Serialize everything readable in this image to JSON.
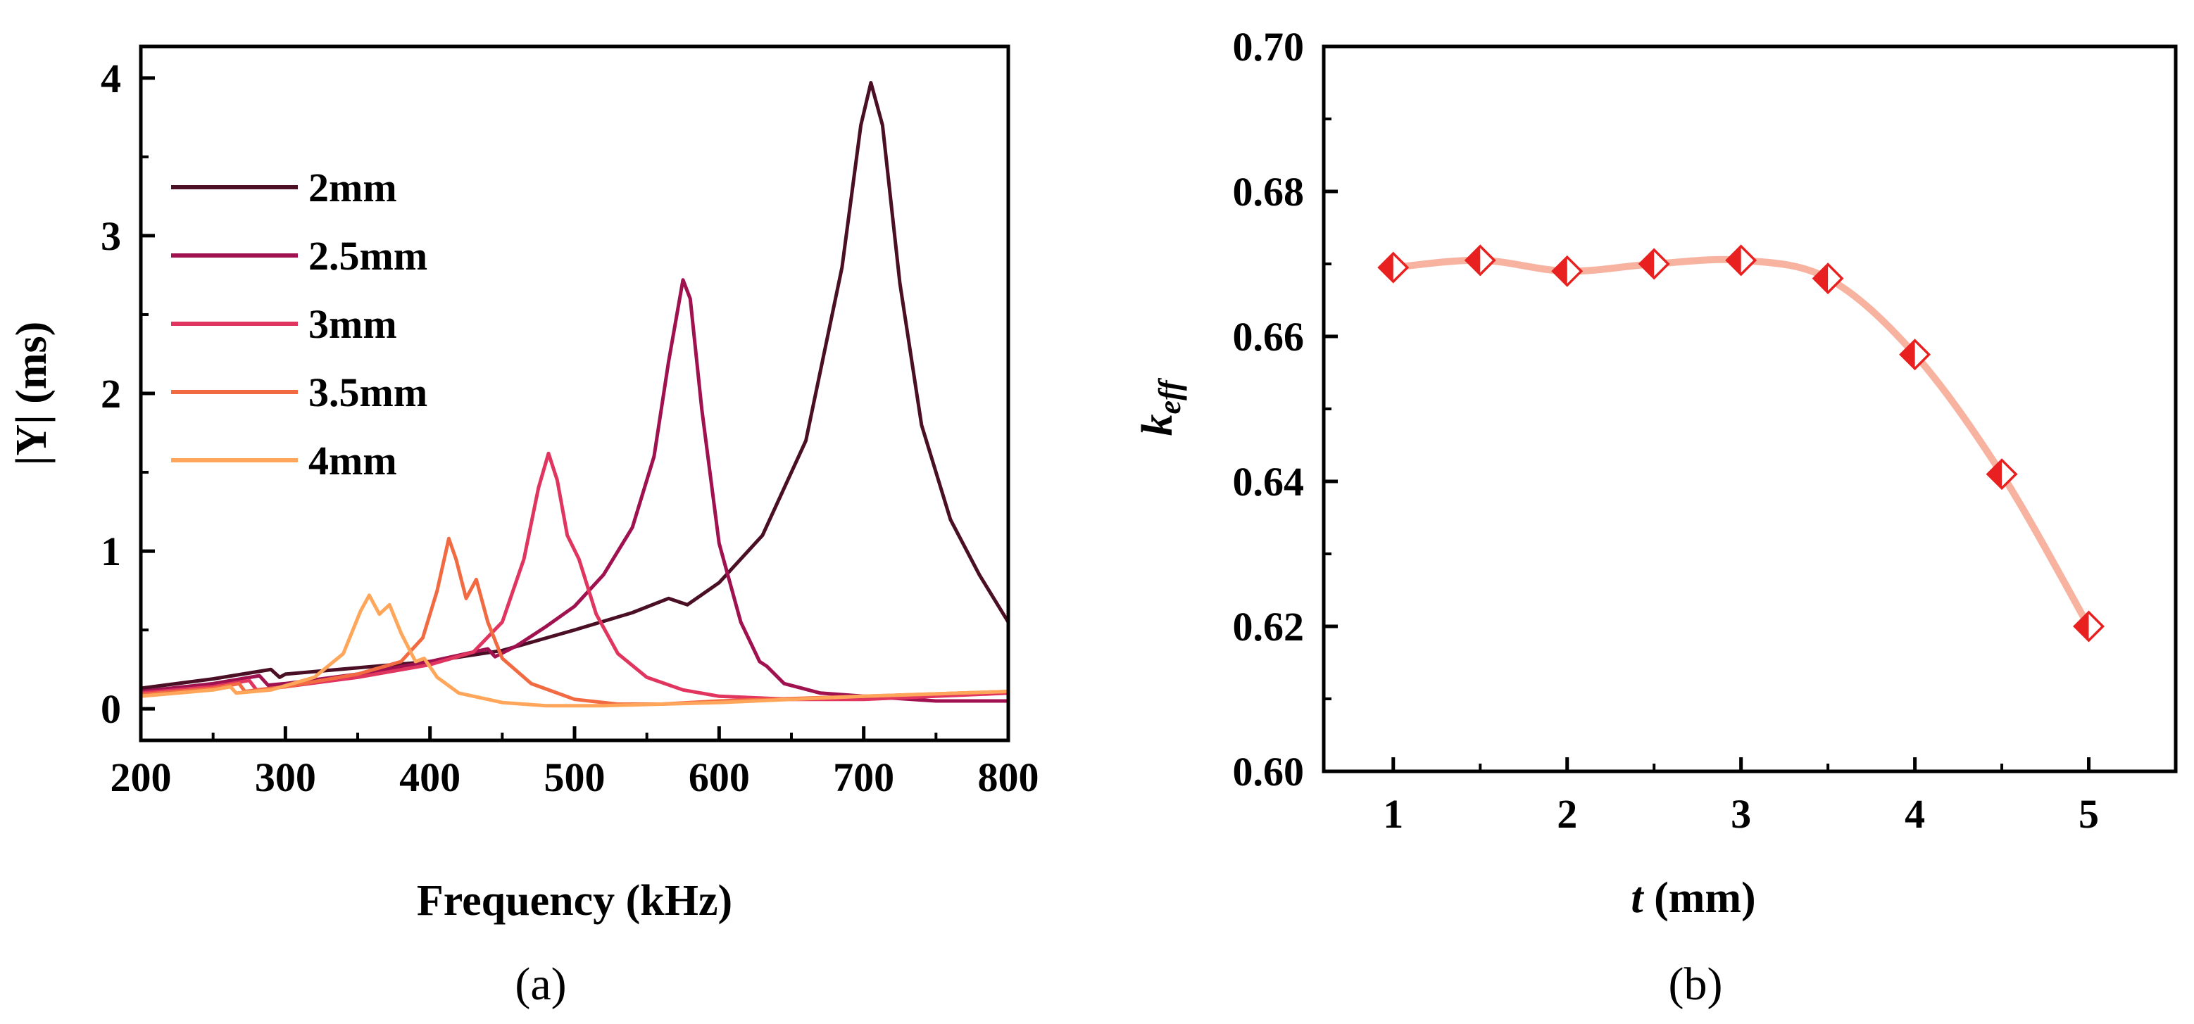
{
  "chart_data": [
    {
      "type": "line",
      "caption": "(a)",
      "xlabel": "Frequency (kHz)",
      "ylabel": "|Y| (ms)",
      "xlim": [
        200,
        800
      ],
      "ylim": [
        -0.2,
        4.2
      ],
      "xticks": [
        200,
        300,
        400,
        500,
        600,
        700,
        800
      ],
      "yticks": [
        0,
        1,
        2,
        3,
        4
      ],
      "grid": false,
      "legend_position": "upper-left",
      "series": [
        {
          "name": "2mm",
          "color": "#4a0f25",
          "points": [
            [
              200,
              0.13
            ],
            [
              250,
              0.19
            ],
            [
              290,
              0.25
            ],
            [
              296,
              0.2
            ],
            [
              300,
              0.22
            ],
            [
              350,
              0.26
            ],
            [
              400,
              0.3
            ],
            [
              450,
              0.37
            ],
            [
              500,
              0.5
            ],
            [
              540,
              0.61
            ],
            [
              565,
              0.7
            ],
            [
              578,
              0.66
            ],
            [
              600,
              0.8
            ],
            [
              630,
              1.1
            ],
            [
              660,
              1.7
            ],
            [
              685,
              2.8
            ],
            [
              698,
              3.7
            ],
            [
              705,
              3.97
            ],
            [
              713,
              3.7
            ],
            [
              725,
              2.7
            ],
            [
              740,
              1.8
            ],
            [
              760,
              1.2
            ],
            [
              780,
              0.85
            ],
            [
              800,
              0.55
            ]
          ]
        },
        {
          "name": "2.5mm",
          "color": "#a0124f",
          "points": [
            [
              200,
              0.11
            ],
            [
              250,
              0.16
            ],
            [
              282,
              0.21
            ],
            [
              288,
              0.15
            ],
            [
              300,
              0.16
            ],
            [
              350,
              0.22
            ],
            [
              400,
              0.3
            ],
            [
              440,
              0.38
            ],
            [
              445,
              0.33
            ],
            [
              460,
              0.4
            ],
            [
              480,
              0.52
            ],
            [
              500,
              0.65
            ],
            [
              520,
              0.85
            ],
            [
              540,
              1.15
            ],
            [
              555,
              1.6
            ],
            [
              565,
              2.2
            ],
            [
              575,
              2.72
            ],
            [
              580,
              2.6
            ],
            [
              588,
              1.9
            ],
            [
              600,
              1.05
            ],
            [
              615,
              0.55
            ],
            [
              628,
              0.3
            ],
            [
              633,
              0.27
            ],
            [
              645,
              0.16
            ],
            [
              670,
              0.1
            ],
            [
              700,
              0.08
            ],
            [
              750,
              0.05
            ],
            [
              800,
              0.05
            ]
          ]
        },
        {
          "name": "3mm",
          "color": "#e0355f",
          "points": [
            [
              200,
              0.1
            ],
            [
              250,
              0.14
            ],
            [
              275,
              0.18
            ],
            [
              280,
              0.12
            ],
            [
              300,
              0.14
            ],
            [
              350,
              0.2
            ],
            [
              400,
              0.28
            ],
            [
              430,
              0.36
            ],
            [
              450,
              0.55
            ],
            [
              465,
              0.95
            ],
            [
              475,
              1.4
            ],
            [
              482,
              1.62
            ],
            [
              488,
              1.45
            ],
            [
              495,
              1.1
            ],
            [
              503,
              0.95
            ],
            [
              515,
              0.6
            ],
            [
              530,
              0.35
            ],
            [
              550,
              0.2
            ],
            [
              575,
              0.12
            ],
            [
              600,
              0.08
            ],
            [
              650,
              0.06
            ],
            [
              700,
              0.06
            ],
            [
              750,
              0.08
            ],
            [
              800,
              0.1
            ]
          ]
        },
        {
          "name": "3.5mm",
          "color": "#f26a42",
          "points": [
            [
              200,
              0.09
            ],
            [
              250,
              0.13
            ],
            [
              268,
              0.16
            ],
            [
              272,
              0.11
            ],
            [
              300,
              0.14
            ],
            [
              350,
              0.22
            ],
            [
              380,
              0.3
            ],
            [
              395,
              0.45
            ],
            [
              405,
              0.75
            ],
            [
              413,
              1.08
            ],
            [
              418,
              0.95
            ],
            [
              425,
              0.7
            ],
            [
              432,
              0.82
            ],
            [
              440,
              0.55
            ],
            [
              450,
              0.32
            ],
            [
              470,
              0.16
            ],
            [
              500,
              0.06
            ],
            [
              530,
              0.03
            ],
            [
              560,
              0.03
            ],
            [
              600,
              0.05
            ],
            [
              700,
              0.08
            ],
            [
              800,
              0.11
            ]
          ]
        },
        {
          "name": "4mm",
          "color": "#ffa65a",
          "points": [
            [
              200,
              0.08
            ],
            [
              250,
              0.12
            ],
            [
              262,
              0.14
            ],
            [
              266,
              0.1
            ],
            [
              290,
              0.12
            ],
            [
              320,
              0.2
            ],
            [
              340,
              0.35
            ],
            [
              352,
              0.62
            ],
            [
              358,
              0.72
            ],
            [
              365,
              0.6
            ],
            [
              372,
              0.66
            ],
            [
              380,
              0.48
            ],
            [
              390,
              0.3
            ],
            [
              396,
              0.32
            ],
            [
              405,
              0.2
            ],
            [
              420,
              0.1
            ],
            [
              450,
              0.04
            ],
            [
              480,
              0.02
            ],
            [
              520,
              0.02
            ],
            [
              600,
              0.04
            ],
            [
              700,
              0.08
            ],
            [
              800,
              0.11
            ]
          ]
        }
      ]
    },
    {
      "type": "line",
      "caption": "(b)",
      "xlabel_var": "t",
      "xlabel_unit": "(mm)",
      "ylabel_main": "k",
      "ylabel_sub": "eff",
      "xlim": [
        0.6,
        5.5
      ],
      "ylim": [
        0.6,
        0.7
      ],
      "xticks": [
        1,
        2,
        3,
        4,
        5
      ],
      "yticks": [
        "0.60",
        "0.62",
        "0.64",
        "0.66",
        "0.68",
        "0.70"
      ],
      "grid": false,
      "line_color": "#f7b2a0",
      "marker": "half-filled-diamond",
      "marker_color": "#e8201f",
      "series": [
        {
          "x": [
            1,
            1.5,
            2,
            2.5,
            3,
            3.5,
            4,
            4.5,
            5
          ],
          "y": [
            0.6695,
            0.6705,
            0.669,
            0.67,
            0.6705,
            0.668,
            0.6575,
            0.641,
            0.62
          ]
        }
      ]
    }
  ]
}
